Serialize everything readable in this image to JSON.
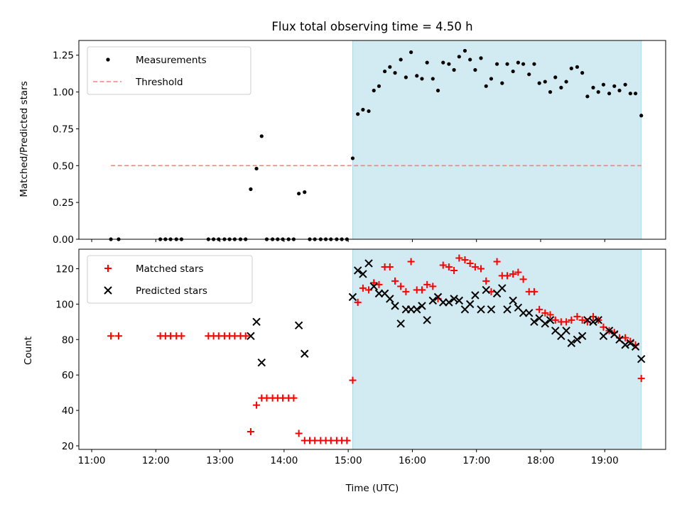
{
  "figure": {
    "title": "Flux total observing time = 4.50 h",
    "xlabel": "Time (UTC)",
    "x_tick_labels": [
      "11:00",
      "12:00",
      "13:00",
      "14:00",
      "15:00",
      "16:00",
      "17:00",
      "18:00",
      "19:00"
    ],
    "highlight_span_hours": [
      15.07,
      19.57
    ],
    "highlight_color": "#add8e6"
  },
  "chart_data": [
    {
      "type": "scatter",
      "ylabel": "Matched/Predicted stars",
      "xlim_hours": [
        10.8,
        19.95
      ],
      "ylim": [
        0,
        1.35
      ],
      "yticks": [
        "0.00",
        "0.25",
        "0.50",
        "0.75",
        "1.00",
        "1.25"
      ],
      "legend_position": "top-left",
      "series": [
        {
          "name": "Measurements",
          "color": "#000000",
          "marker": "dot",
          "points": [
            [
              11.3,
              0
            ],
            [
              11.42,
              0
            ],
            [
              12.07,
              0
            ],
            [
              12.15,
              0
            ],
            [
              12.23,
              0
            ],
            [
              12.32,
              0
            ],
            [
              12.4,
              0
            ],
            [
              12.82,
              0
            ],
            [
              12.9,
              0
            ],
            [
              12.98,
              0
            ],
            [
              13.07,
              0
            ],
            [
              13.15,
              0
            ],
            [
              13.23,
              0
            ],
            [
              13.32,
              0
            ],
            [
              13.4,
              0
            ],
            [
              13.48,
              0.34
            ],
            [
              13.57,
              0.48
            ],
            [
              13.65,
              0.7
            ],
            [
              13.73,
              0
            ],
            [
              13.82,
              0
            ],
            [
              13.9,
              0
            ],
            [
              13.98,
              0
            ],
            [
              14.07,
              0
            ],
            [
              14.15,
              0
            ],
            [
              14.23,
              0.31
            ],
            [
              14.32,
              0.32
            ],
            [
              14.4,
              0
            ],
            [
              14.48,
              0
            ],
            [
              14.57,
              0
            ],
            [
              14.65,
              0
            ],
            [
              14.73,
              0
            ],
            [
              14.82,
              0
            ],
            [
              14.9,
              0
            ],
            [
              14.98,
              0
            ],
            [
              15.07,
              0.55
            ],
            [
              15.15,
              0.85
            ],
            [
              15.23,
              0.88
            ],
            [
              15.32,
              0.87
            ],
            [
              15.4,
              1.01
            ],
            [
              15.48,
              1.04
            ],
            [
              15.57,
              1.14
            ],
            [
              15.65,
              1.17
            ],
            [
              15.73,
              1.13
            ],
            [
              15.82,
              1.22
            ],
            [
              15.9,
              1.1
            ],
            [
              15.98,
              1.27
            ],
            [
              16.07,
              1.11
            ],
            [
              16.15,
              1.09
            ],
            [
              16.23,
              1.2
            ],
            [
              16.32,
              1.09
            ],
            [
              16.4,
              1.01
            ],
            [
              16.48,
              1.2
            ],
            [
              16.57,
              1.19
            ],
            [
              16.65,
              1.15
            ],
            [
              16.73,
              1.24
            ],
            [
              16.82,
              1.28
            ],
            [
              16.9,
              1.22
            ],
            [
              16.98,
              1.15
            ],
            [
              17.07,
              1.23
            ],
            [
              17.15,
              1.04
            ],
            [
              17.23,
              1.09
            ],
            [
              17.32,
              1.19
            ],
            [
              17.4,
              1.06
            ],
            [
              17.48,
              1.19
            ],
            [
              17.57,
              1.14
            ],
            [
              17.65,
              1.2
            ],
            [
              17.73,
              1.19
            ],
            [
              17.82,
              1.12
            ],
            [
              17.9,
              1.19
            ],
            [
              17.98,
              1.06
            ],
            [
              18.07,
              1.07
            ],
            [
              18.15,
              1.0
            ],
            [
              18.23,
              1.1
            ],
            [
              18.32,
              1.03
            ],
            [
              18.4,
              1.07
            ],
            [
              18.48,
              1.16
            ],
            [
              18.57,
              1.17
            ],
            [
              18.65,
              1.13
            ],
            [
              18.73,
              0.97
            ],
            [
              18.82,
              1.03
            ],
            [
              18.9,
              1.0
            ],
            [
              18.98,
              1.05
            ],
            [
              19.07,
              0.99
            ],
            [
              19.15,
              1.04
            ],
            [
              19.23,
              1.01
            ],
            [
              19.32,
              1.05
            ],
            [
              19.4,
              0.99
            ],
            [
              19.48,
              0.99
            ],
            [
              19.57,
              0.84
            ]
          ]
        },
        {
          "name": "Threshold",
          "color": "#ff7f7f",
          "line_style": "dashed",
          "points": [
            [
              11.3,
              0.5
            ],
            [
              19.57,
              0.5
            ]
          ]
        }
      ]
    },
    {
      "type": "scatter",
      "ylabel": "Count",
      "xlim_hours": [
        10.8,
        19.95
      ],
      "ylim": [
        18,
        131
      ],
      "yticks": [
        "20",
        "40",
        "60",
        "80",
        "100",
        "120"
      ],
      "legend_position": "top-left",
      "series": [
        {
          "name": "Matched stars",
          "color": "#ff0000",
          "marker": "plus",
          "points": [
            [
              11.3,
              82
            ],
            [
              11.42,
              82
            ],
            [
              12.07,
              82
            ],
            [
              12.15,
              82
            ],
            [
              12.23,
              82
            ],
            [
              12.32,
              82
            ],
            [
              12.4,
              82
            ],
            [
              12.82,
              82
            ],
            [
              12.9,
              82
            ],
            [
              12.98,
              82
            ],
            [
              13.07,
              82
            ],
            [
              13.15,
              82
            ],
            [
              13.23,
              82
            ],
            [
              13.32,
              82
            ],
            [
              13.4,
              82
            ],
            [
              13.48,
              28
            ],
            [
              13.57,
              43
            ],
            [
              13.65,
              47
            ],
            [
              13.73,
              47
            ],
            [
              13.82,
              47
            ],
            [
              13.9,
              47
            ],
            [
              13.98,
              47
            ],
            [
              14.07,
              47
            ],
            [
              14.15,
              47
            ],
            [
              14.23,
              27
            ],
            [
              14.32,
              23
            ],
            [
              14.4,
              23
            ],
            [
              14.48,
              23
            ],
            [
              14.57,
              23
            ],
            [
              14.65,
              23
            ],
            [
              14.73,
              23
            ],
            [
              14.82,
              23
            ],
            [
              14.9,
              23
            ],
            [
              14.98,
              23
            ],
            [
              15.07,
              57
            ],
            [
              15.15,
              101
            ],
            [
              15.23,
              109
            ],
            [
              15.32,
              108
            ],
            [
              15.4,
              112
            ],
            [
              15.48,
              111
            ],
            [
              15.57,
              121
            ],
            [
              15.65,
              121
            ],
            [
              15.73,
              113
            ],
            [
              15.82,
              110
            ],
            [
              15.9,
              107
            ],
            [
              15.98,
              124
            ],
            [
              16.07,
              108
            ],
            [
              16.15,
              108
            ],
            [
              16.23,
              111
            ],
            [
              16.32,
              110
            ],
            [
              16.4,
              103
            ],
            [
              16.48,
              122
            ],
            [
              16.57,
              121
            ],
            [
              16.65,
              119
            ],
            [
              16.73,
              126
            ],
            [
              16.82,
              125
            ],
            [
              16.9,
              123
            ],
            [
              16.98,
              121
            ],
            [
              17.07,
              120
            ],
            [
              17.15,
              113
            ],
            [
              17.23,
              107
            ],
            [
              17.32,
              124
            ],
            [
              17.4,
              116
            ],
            [
              17.48,
              116
            ],
            [
              17.57,
              117
            ],
            [
              17.65,
              118
            ],
            [
              17.73,
              114
            ],
            [
              17.82,
              107
            ],
            [
              17.9,
              107
            ],
            [
              17.98,
              97
            ],
            [
              18.07,
              95
            ],
            [
              18.15,
              94
            ],
            [
              18.23,
              91
            ],
            [
              18.32,
              90
            ],
            [
              18.4,
              90
            ],
            [
              18.48,
              91
            ],
            [
              18.57,
              93
            ],
            [
              18.65,
              91
            ],
            [
              18.73,
              90
            ],
            [
              18.82,
              93
            ],
            [
              18.9,
              91
            ],
            [
              18.98,
              87
            ],
            [
              19.07,
              85
            ],
            [
              19.15,
              84
            ],
            [
              19.23,
              81
            ],
            [
              19.32,
              81
            ],
            [
              19.4,
              79
            ],
            [
              19.48,
              77
            ],
            [
              19.57,
              58
            ]
          ]
        },
        {
          "name": "Predicted stars",
          "color": "#000000",
          "marker": "x",
          "points": [
            [
              13.48,
              82
            ],
            [
              13.57,
              90
            ],
            [
              13.65,
              67
            ],
            [
              14.23,
              88
            ],
            [
              14.32,
              72
            ],
            [
              15.07,
              104
            ],
            [
              15.15,
              119
            ],
            [
              15.23,
              117
            ],
            [
              15.32,
              123
            ],
            [
              15.4,
              110
            ],
            [
              15.48,
              106
            ],
            [
              15.57,
              106
            ],
            [
              15.65,
              103
            ],
            [
              15.73,
              99
            ],
            [
              15.82,
              89
            ],
            [
              15.9,
              97
            ],
            [
              15.98,
              97
            ],
            [
              16.07,
              97
            ],
            [
              16.15,
              99
            ],
            [
              16.23,
              91
            ],
            [
              16.32,
              102
            ],
            [
              16.4,
              104
            ],
            [
              16.48,
              101
            ],
            [
              16.57,
              101
            ],
            [
              16.65,
              103
            ],
            [
              16.73,
              102
            ],
            [
              16.82,
              97
            ],
            [
              16.9,
              100
            ],
            [
              16.98,
              105
            ],
            [
              17.07,
              97
            ],
            [
              17.15,
              108
            ],
            [
              17.23,
              97
            ],
            [
              17.32,
              106
            ],
            [
              17.4,
              109
            ],
            [
              17.48,
              97
            ],
            [
              17.57,
              102
            ],
            [
              17.65,
              98
            ],
            [
              17.73,
              95
            ],
            [
              17.82,
              95
            ],
            [
              17.9,
              90
            ],
            [
              17.98,
              92
            ],
            [
              18.07,
              89
            ],
            [
              18.15,
              91
            ],
            [
              18.23,
              85
            ],
            [
              18.32,
              82
            ],
            [
              18.4,
              85
            ],
            [
              18.48,
              78
            ],
            [
              18.57,
              80
            ],
            [
              18.65,
              82
            ],
            [
              18.73,
              91
            ],
            [
              18.82,
              90
            ],
            [
              18.9,
              91
            ],
            [
              18.98,
              82
            ],
            [
              19.07,
              85
            ],
            [
              19.15,
              83
            ],
            [
              19.23,
              80
            ],
            [
              19.32,
              77
            ],
            [
              19.4,
              78
            ],
            [
              19.48,
              76
            ],
            [
              19.57,
              69
            ]
          ]
        }
      ]
    }
  ]
}
